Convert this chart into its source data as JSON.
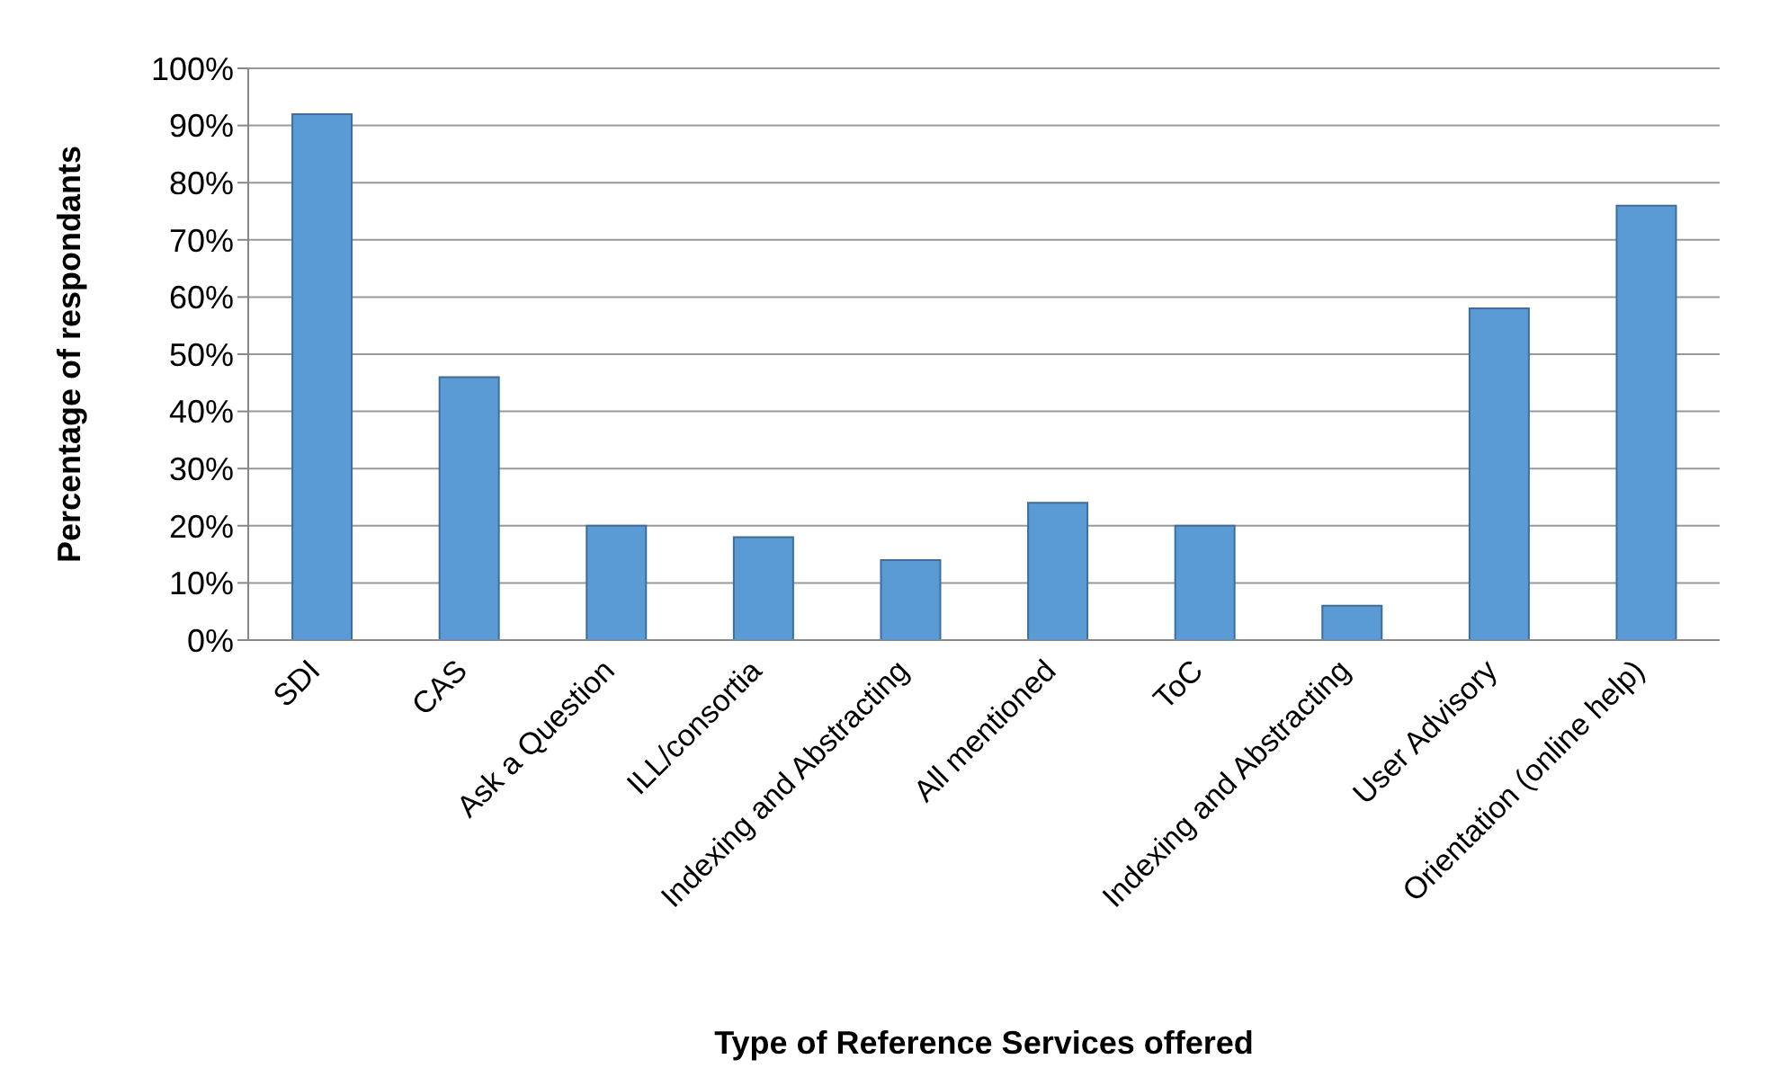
{
  "chart_data": {
    "type": "bar",
    "xlabel": "Type of Reference Services offered",
    "ylabel": "Percentage of respondants",
    "categories": [
      "SDI",
      "CAS",
      "Ask a Question",
      "ILL/consortia",
      "Indexing and Abstracting",
      "All mentioned",
      "ToC",
      "Indexing and Abstracting",
      "User Advisory",
      "Orientation (online help)"
    ],
    "values": [
      92,
      46,
      20,
      18,
      14,
      24,
      20,
      6,
      58,
      76
    ],
    "color": "#5b9bd5",
    "ylim": [
      0,
      100
    ],
    "yticks": [
      {
        "value": 0,
        "label": "0%"
      },
      {
        "value": 10,
        "label": "10%"
      },
      {
        "value": 20,
        "label": "20%"
      },
      {
        "value": 30,
        "label": "30%"
      },
      {
        "value": 40,
        "label": "40%"
      },
      {
        "value": 50,
        "label": "50%"
      },
      {
        "value": 60,
        "label": "60%"
      },
      {
        "value": 70,
        "label": "70%"
      },
      {
        "value": 80,
        "label": "80%"
      },
      {
        "value": 90,
        "label": "90%"
      },
      {
        "value": 100,
        "label": "100%"
      }
    ],
    "grid": "y",
    "legend": false
  }
}
